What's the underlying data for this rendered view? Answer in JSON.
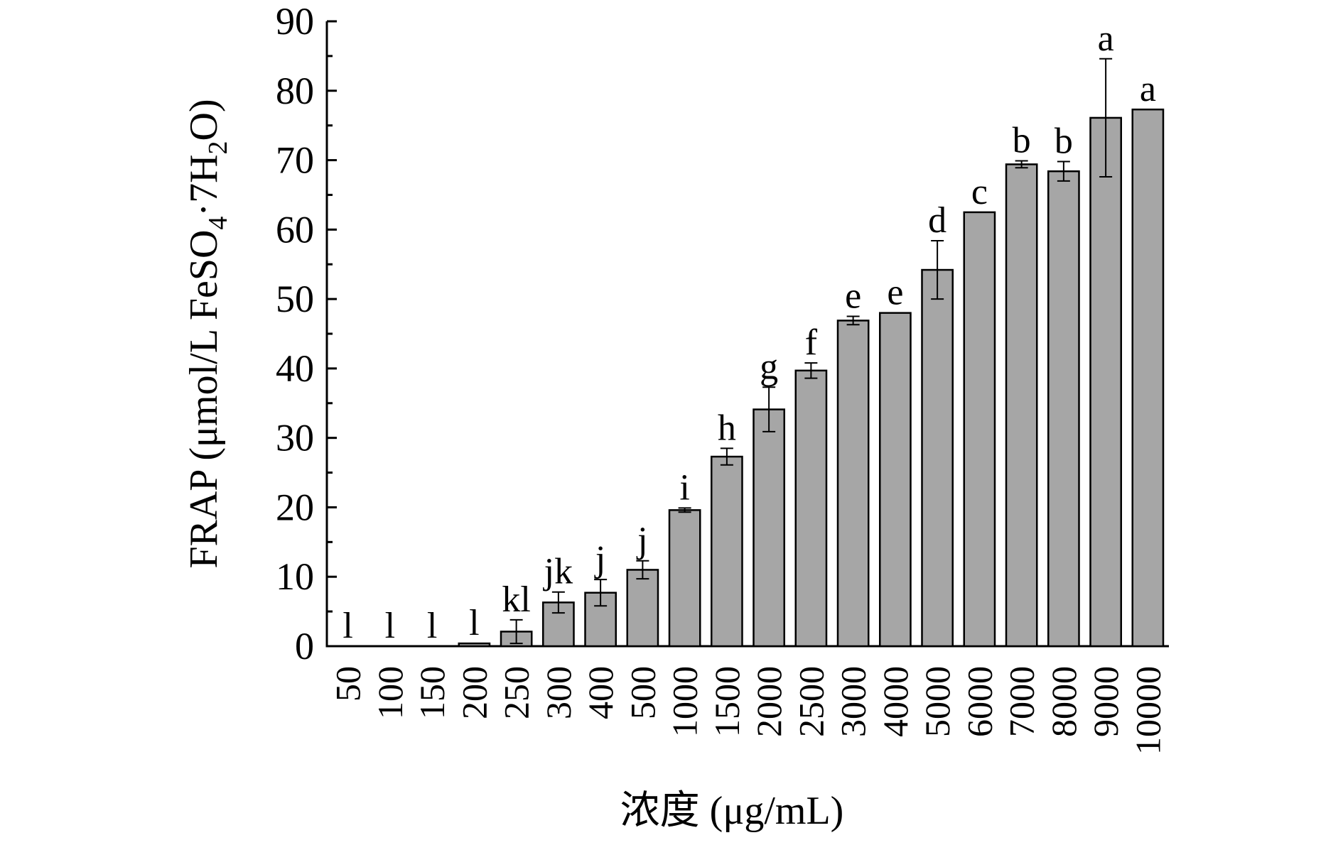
{
  "chart_data": {
    "type": "bar",
    "title": "",
    "xlabel": "浓度 (μg/mL)",
    "ylabel_parts": {
      "main": "FRAP (μmol/L FeSO",
      "sub1": "4",
      "mid": "·7H",
      "sub2": "2",
      "end": "O)"
    },
    "ylim": [
      0,
      90
    ],
    "yticks": [
      "0",
      "10",
      "20",
      "30",
      "40",
      "50",
      "60",
      "70",
      "80",
      "90"
    ],
    "categories": [
      "50",
      "100",
      "150",
      "200",
      "250",
      "300",
      "400",
      "500",
      "1000",
      "1500",
      "2000",
      "2500",
      "3000",
      "4000",
      "5000",
      "6000",
      "7000",
      "8000",
      "9000",
      "10000"
    ],
    "values": [
      0,
      0,
      0,
      0.4,
      2.1,
      6.3,
      7.7,
      11.0,
      19.6,
      27.3,
      34.1,
      39.7,
      46.9,
      48.0,
      54.2,
      62.5,
      69.4,
      68.4,
      76.1,
      77.3
    ],
    "errors": [
      0,
      0,
      0,
      0,
      1.7,
      1.5,
      1.9,
      1.3,
      0.3,
      1.2,
      3.2,
      1.1,
      0.6,
      0,
      4.2,
      0,
      0.5,
      1.4,
      8.5,
      0
    ],
    "significance": [
      "l",
      "l",
      "l",
      "l",
      "kl",
      "jk",
      "j",
      "j",
      "i",
      "h",
      "g",
      "f",
      "e",
      "e",
      "d",
      "c",
      "b",
      "b",
      "a",
      "a"
    ],
    "colors": {
      "bar": "#a6a6a6",
      "edge": "#000000"
    },
    "grid": false
  }
}
